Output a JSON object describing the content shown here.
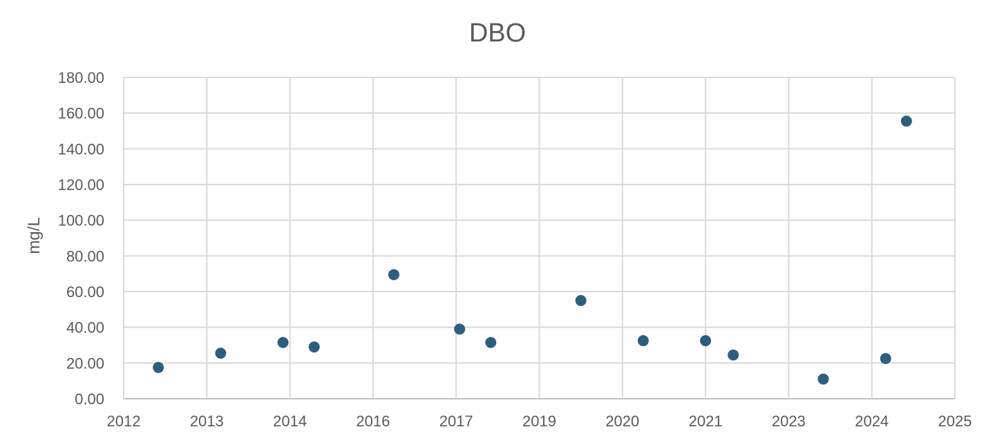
{
  "chart_data": {
    "type": "scatter",
    "title": "DBO",
    "xlabel": "",
    "ylabel": "mg/L",
    "x_tick_labels": [
      "2012",
      "2013",
      "2014",
      "2016",
      "2017",
      "2019",
      "2020",
      "2021",
      "2023",
      "2024",
      "2025"
    ],
    "y_tick_labels": [
      "0.00",
      "20.00",
      "40.00",
      "60.00",
      "80.00",
      "100.00",
      "120.00",
      "140.00",
      "160.00",
      "180.00"
    ],
    "ylim": [
      0,
      180
    ],
    "grid": true,
    "legend": "none",
    "series": [
      {
        "color": "#2e5e7e",
        "points": [
          {
            "x": "2012-06",
            "y": 17.5
          },
          {
            "x": "2013-03",
            "y": 25.5
          },
          {
            "x": "2013-12",
            "y": 31.5
          },
          {
            "x": "2014-08",
            "y": 29.0
          },
          {
            "x": "2016-04",
            "y": 69.5
          },
          {
            "x": "2017-02",
            "y": 39.0
          },
          {
            "x": "2017-11",
            "y": 31.5
          },
          {
            "x": "2019-07",
            "y": 55.0
          },
          {
            "x": "2020-04",
            "y": 32.5
          },
          {
            "x": "2021-01",
            "y": 32.5
          },
          {
            "x": "2021-09",
            "y": 24.5
          },
          {
            "x": "2023-06",
            "y": 11.0
          },
          {
            "x": "2024-03",
            "y": 22.5
          },
          {
            "x": "2024-06",
            "y": 155.5
          }
        ]
      }
    ]
  }
}
